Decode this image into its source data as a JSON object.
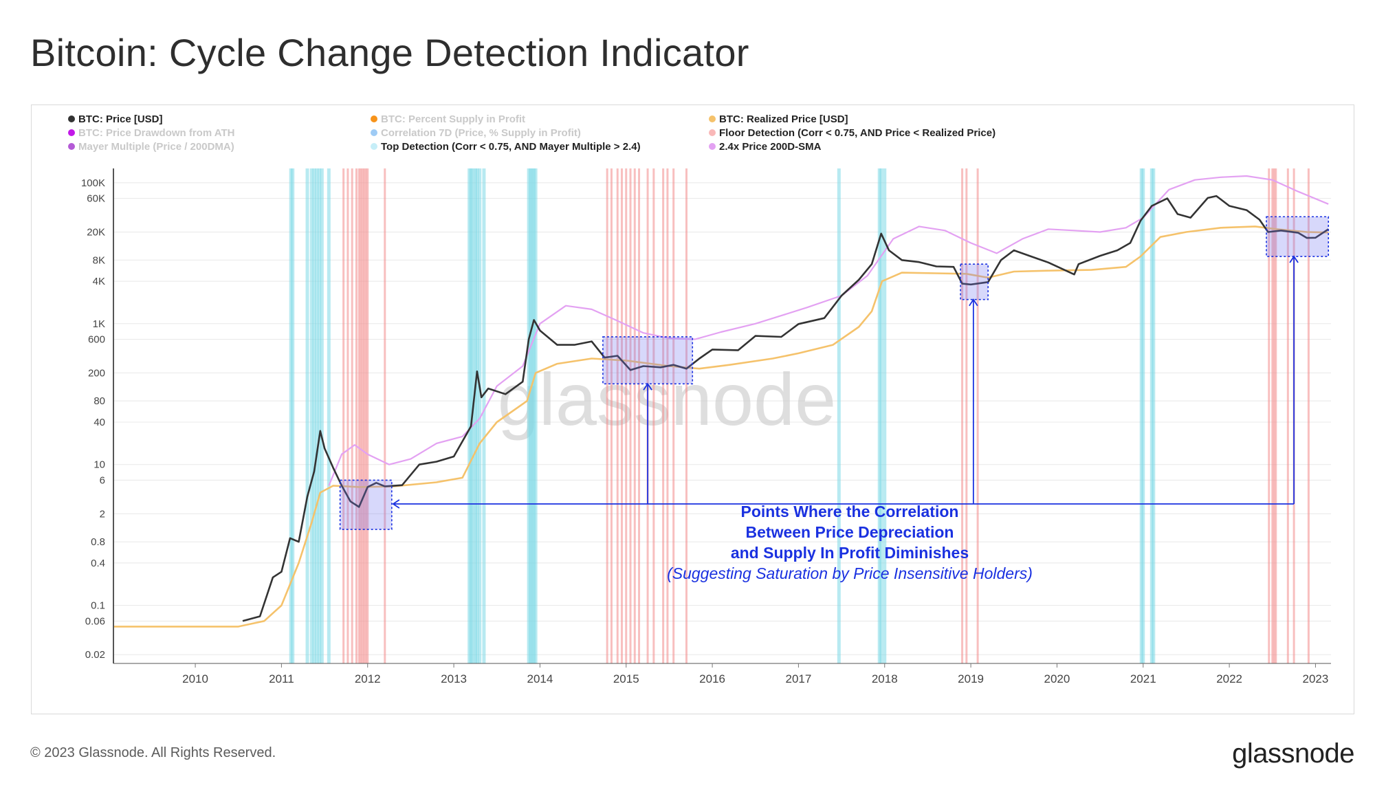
{
  "page": {
    "title": "Bitcoin: Cycle Change Detection Indicator",
    "footer_copyright": "© 2023 Glassnode. All Rights Reserved.",
    "footer_brand": "glassnode",
    "watermark": "glassnode"
  },
  "chart_data": {
    "type": "line",
    "y_scale": "log",
    "y_ticks": [
      {
        "label": "100K",
        "value": 100000
      },
      {
        "label": "60K",
        "value": 60000
      },
      {
        "label": "20K",
        "value": 20000
      },
      {
        "label": "8K",
        "value": 8000
      },
      {
        "label": "4K",
        "value": 4000
      },
      {
        "label": "1K",
        "value": 1000
      },
      {
        "label": "600",
        "value": 600
      },
      {
        "label": "200",
        "value": 200
      },
      {
        "label": "80",
        "value": 80
      },
      {
        "label": "40",
        "value": 40
      },
      {
        "label": "10",
        "value": 10
      },
      {
        "label": "6",
        "value": 6
      },
      {
        "label": "2",
        "value": 2
      },
      {
        "label": "0.8",
        "value": 0.8
      },
      {
        "label": "0.4",
        "value": 0.4
      },
      {
        "label": "0.1",
        "value": 0.1
      },
      {
        "label": "0.06",
        "value": 0.06
      },
      {
        "label": "0.02",
        "value": 0.02
      }
    ],
    "x_ticks": [
      {
        "label": "2010",
        "value": 2010.0
      },
      {
        "label": "2011",
        "value": 2011.0
      },
      {
        "label": "2012",
        "value": 2012.0
      },
      {
        "label": "2013",
        "value": 2013.0
      },
      {
        "label": "2014",
        "value": 2014.0
      },
      {
        "label": "2015",
        "value": 2015.0
      },
      {
        "label": "2016",
        "value": 2016.0
      },
      {
        "label": "2017",
        "value": 2017.0
      },
      {
        "label": "2018",
        "value": 2018.0
      },
      {
        "label": "2019",
        "value": 2019.0
      },
      {
        "label": "2020",
        "value": 2020.0
      },
      {
        "label": "2021",
        "value": 2021.0
      },
      {
        "label": "2022",
        "value": 2022.0
      },
      {
        "label": "2023",
        "value": 2023.0
      }
    ],
    "legend": [
      {
        "label": "BTC: Price [USD]",
        "color": "#333333",
        "active": true
      },
      {
        "label": "BTC: Percent Supply in Profit",
        "color": "#f7931a",
        "active": false
      },
      {
        "label": "BTC: Realized Price [USD]",
        "color": "#f5c26b",
        "active": true
      },
      {
        "label": "BTC: Price Drawdown from ATH",
        "color": "#c218e8",
        "active": false
      },
      {
        "label": "Correlation 7D (Price, % Supply in Profit)",
        "color": "#9ecbf5",
        "active": false
      },
      {
        "label": "Floor Detection (Corr < 0.75, AND Price < Realized Price)",
        "color": "#f9b8b8",
        "active": true
      },
      {
        "label": "Mayer Multiple (Price / 200DMA)",
        "color": "#b45ad6",
        "active": false
      },
      {
        "label": "Top Detection (Corr < 0.75, AND Mayer Multiple > 2.4)",
        "color": "#c6eef8",
        "active": true
      },
      {
        "label": "2.4x Price 200D-SMA",
        "color": "#e3a1f2",
        "active": true
      }
    ],
    "series": [
      {
        "name": "BTC: Price [USD]",
        "color": "#333333",
        "points": [
          [
            2010.55,
            0.06
          ],
          [
            2010.75,
            0.07
          ],
          [
            2010.9,
            0.25
          ],
          [
            2011.0,
            0.3
          ],
          [
            2011.1,
            0.9
          ],
          [
            2011.2,
            0.8
          ],
          [
            2011.3,
            3.5
          ],
          [
            2011.38,
            8
          ],
          [
            2011.45,
            30
          ],
          [
            2011.5,
            17
          ],
          [
            2011.6,
            9
          ],
          [
            2011.7,
            5
          ],
          [
            2011.8,
            3
          ],
          [
            2011.9,
            2.5
          ],
          [
            2012.0,
            4.8
          ],
          [
            2012.1,
            5.5
          ],
          [
            2012.2,
            4.9
          ],
          [
            2012.4,
            5.1
          ],
          [
            2012.6,
            10
          ],
          [
            2012.8,
            11
          ],
          [
            2013.0,
            13
          ],
          [
            2013.2,
            35
          ],
          [
            2013.27,
            210
          ],
          [
            2013.32,
            90
          ],
          [
            2013.4,
            120
          ],
          [
            2013.6,
            100
          ],
          [
            2013.8,
            150
          ],
          [
            2013.87,
            600
          ],
          [
            2013.93,
            1130
          ],
          [
            2014.0,
            800
          ],
          [
            2014.2,
            500
          ],
          [
            2014.4,
            500
          ],
          [
            2014.6,
            560
          ],
          [
            2014.75,
            330
          ],
          [
            2014.9,
            350
          ],
          [
            2015.05,
            220
          ],
          [
            2015.2,
            250
          ],
          [
            2015.4,
            240
          ],
          [
            2015.55,
            260
          ],
          [
            2015.7,
            230
          ],
          [
            2015.85,
            320
          ],
          [
            2016.0,
            430
          ],
          [
            2016.3,
            420
          ],
          [
            2016.5,
            670
          ],
          [
            2016.8,
            650
          ],
          [
            2017.0,
            990
          ],
          [
            2017.3,
            1200
          ],
          [
            2017.5,
            2500
          ],
          [
            2017.7,
            4200
          ],
          [
            2017.85,
            7000
          ],
          [
            2017.96,
            19000
          ],
          [
            2018.05,
            11000
          ],
          [
            2018.2,
            8000
          ],
          [
            2018.4,
            7500
          ],
          [
            2018.6,
            6500
          ],
          [
            2018.8,
            6400
          ],
          [
            2018.9,
            3700
          ],
          [
            2019.0,
            3600
          ],
          [
            2019.2,
            3900
          ],
          [
            2019.35,
            8000
          ],
          [
            2019.5,
            11000
          ],
          [
            2019.7,
            9000
          ],
          [
            2019.9,
            7400
          ],
          [
            2020.2,
            5000
          ],
          [
            2020.25,
            7000
          ],
          [
            2020.5,
            9200
          ],
          [
            2020.7,
            11000
          ],
          [
            2020.85,
            14000
          ],
          [
            2020.97,
            29000
          ],
          [
            2021.1,
            47000
          ],
          [
            2021.28,
            60000
          ],
          [
            2021.4,
            36000
          ],
          [
            2021.55,
            32000
          ],
          [
            2021.75,
            61000
          ],
          [
            2021.85,
            65000
          ],
          [
            2022.0,
            47000
          ],
          [
            2022.2,
            41000
          ],
          [
            2022.35,
            30000
          ],
          [
            2022.45,
            20000
          ],
          [
            2022.6,
            21000
          ],
          [
            2022.8,
            19500
          ],
          [
            2022.9,
            16500
          ],
          [
            2023.0,
            16600
          ],
          [
            2023.15,
            22000
          ]
        ]
      },
      {
        "name": "BTC: Realized Price [USD]",
        "color": "#f5c26b",
        "points": [
          [
            2009.05,
            0.05
          ],
          [
            2010.5,
            0.05
          ],
          [
            2010.8,
            0.06
          ],
          [
            2011.0,
            0.1
          ],
          [
            2011.2,
            0.4
          ],
          [
            2011.35,
            1.5
          ],
          [
            2011.45,
            4
          ],
          [
            2011.6,
            5
          ],
          [
            2011.9,
            4.8
          ],
          [
            2012.3,
            4.9
          ],
          [
            2012.8,
            5.6
          ],
          [
            2013.1,
            6.5
          ],
          [
            2013.3,
            20
          ],
          [
            2013.5,
            40
          ],
          [
            2013.85,
            80
          ],
          [
            2013.95,
            200
          ],
          [
            2014.2,
            270
          ],
          [
            2014.6,
            320
          ],
          [
            2015.0,
            300
          ],
          [
            2015.5,
            250
          ],
          [
            2015.85,
            230
          ],
          [
            2016.2,
            260
          ],
          [
            2016.7,
            320
          ],
          [
            2017.0,
            380
          ],
          [
            2017.4,
            500
          ],
          [
            2017.7,
            900
          ],
          [
            2017.85,
            1500
          ],
          [
            2017.97,
            4000
          ],
          [
            2018.2,
            5300
          ],
          [
            2018.6,
            5200
          ],
          [
            2018.95,
            5100
          ],
          [
            2019.2,
            4500
          ],
          [
            2019.5,
            5500
          ],
          [
            2020.0,
            5700
          ],
          [
            2020.4,
            5800
          ],
          [
            2020.8,
            6400
          ],
          [
            2020.97,
            9000
          ],
          [
            2021.2,
            17000
          ],
          [
            2021.5,
            20000
          ],
          [
            2021.9,
            23000
          ],
          [
            2022.3,
            24000
          ],
          [
            2022.55,
            22000
          ],
          [
            2022.9,
            20000
          ],
          [
            2023.15,
            19700
          ]
        ]
      },
      {
        "name": "2.4x Price 200D-SMA",
        "color": "#e3a1f2",
        "points": [
          [
            2011.55,
            5
          ],
          [
            2011.7,
            14
          ],
          [
            2011.85,
            19
          ],
          [
            2012.0,
            14
          ],
          [
            2012.25,
            10
          ],
          [
            2012.5,
            12
          ],
          [
            2012.8,
            20
          ],
          [
            2013.1,
            25
          ],
          [
            2013.3,
            45
          ],
          [
            2013.5,
            130
          ],
          [
            2013.8,
            250
          ],
          [
            2014.0,
            1000
          ],
          [
            2014.3,
            1800
          ],
          [
            2014.6,
            1600
          ],
          [
            2014.9,
            1100
          ],
          [
            2015.2,
            740
          ],
          [
            2015.5,
            620
          ],
          [
            2015.8,
            600
          ],
          [
            2016.1,
            760
          ],
          [
            2016.5,
            1000
          ],
          [
            2016.8,
            1300
          ],
          [
            2017.1,
            1700
          ],
          [
            2017.5,
            2500
          ],
          [
            2017.8,
            4800
          ],
          [
            2018.1,
            16000
          ],
          [
            2018.4,
            24000
          ],
          [
            2018.7,
            21000
          ],
          [
            2019.0,
            14000
          ],
          [
            2019.3,
            10000
          ],
          [
            2019.6,
            16000
          ],
          [
            2019.9,
            22000
          ],
          [
            2020.2,
            21000
          ],
          [
            2020.5,
            20000
          ],
          [
            2020.8,
            23000
          ],
          [
            2021.0,
            32000
          ],
          [
            2021.3,
            80000
          ],
          [
            2021.6,
            110000
          ],
          [
            2021.9,
            120000
          ],
          [
            2022.2,
            125000
          ],
          [
            2022.5,
            110000
          ],
          [
            2022.8,
            75000
          ],
          [
            2023.15,
            50000
          ]
        ]
      }
    ],
    "floor_detection_dates": [
      2011.72,
      2011.77,
      2011.82,
      2011.87,
      2011.9,
      2011.92,
      2011.94,
      2011.96,
      2011.98,
      2012.0,
      2012.2,
      2014.78,
      2014.83,
      2014.9,
      2014.95,
      2015.0,
      2015.05,
      2015.1,
      2015.15,
      2015.25,
      2015.32,
      2015.43,
      2015.48,
      2015.55,
      2015.7,
      2018.9,
      2018.95,
      2019.08,
      2022.46,
      2022.5,
      2022.52,
      2022.54,
      2022.68,
      2022.75,
      2022.92
    ],
    "top_detection_dates": [
      2011.11,
      2011.13,
      2011.3,
      2011.35,
      2011.38,
      2011.41,
      2011.44,
      2011.47,
      2011.55,
      2013.18,
      2013.2,
      2013.22,
      2013.25,
      2013.27,
      2013.3,
      2013.35,
      2013.87,
      2013.89,
      2013.91,
      2013.93,
      2013.95,
      2017.47,
      2017.94,
      2017.96,
      2018.0,
      2020.98,
      2021.0,
      2021.1,
      2021.12
    ],
    "highlight_boxes": [
      {
        "x0": 2011.68,
        "x1": 2012.28,
        "y0": 1.2,
        "y1": 6
      },
      {
        "x0": 2014.73,
        "x1": 2015.77,
        "y0": 140,
        "y1": 650
      },
      {
        "x0": 2018.88,
        "x1": 2019.2,
        "y0": 2200,
        "y1": 7000
      },
      {
        "x0": 2022.43,
        "x1": 2023.15,
        "y0": 9000,
        "y1": 33000
      }
    ],
    "annotation": {
      "line1": "Points Where the Correlation",
      "line2": "Between Price Depreciation",
      "line3": "and Supply In Profit Diminishes",
      "line4": "(Suggesting Saturation by Price Insensitive Holders)",
      "color": "#1a31e0"
    }
  }
}
